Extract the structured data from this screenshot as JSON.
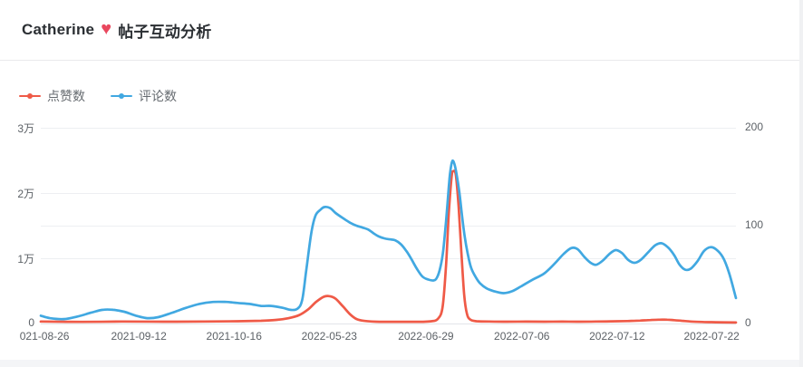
{
  "header": {
    "title_name": "Catherine",
    "heart_icon": "♥",
    "title_text": "帖子互动分析"
  },
  "chart_data": {
    "type": "line",
    "title": "Catherine ♥ 帖子互动分析",
    "grid": true,
    "legend_position": "top-left",
    "left_axis": {
      "max": 30000,
      "ticks": [
        {
          "v": 0,
          "label": "0"
        },
        {
          "v": 10000,
          "label": "1万"
        },
        {
          "v": 20000,
          "label": "2万"
        },
        {
          "v": 30000,
          "label": "3万"
        }
      ]
    },
    "right_axis": {
      "max": 200,
      "ticks": [
        {
          "v": 0,
          "label": "0"
        },
        {
          "v": 100,
          "label": "100"
        },
        {
          "v": 200,
          "label": "200"
        }
      ]
    },
    "x_ticks": [
      {
        "pos": 0.001,
        "label": "2021-08-26"
      },
      {
        "pos": 0.141,
        "label": "2021-09-12"
      },
      {
        "pos": 0.278,
        "label": "2021-10-16"
      },
      {
        "pos": 0.415,
        "label": "2022-05-23"
      },
      {
        "pos": 0.554,
        "label": "2022-06-29"
      },
      {
        "pos": 0.692,
        "label": "2022-07-06"
      },
      {
        "pos": 0.829,
        "label": "2022-07-12"
      },
      {
        "pos": 0.965,
        "label": "2022-07-22"
      }
    ],
    "series": [
      {
        "name": "点赞数",
        "name_en": "likes",
        "axis": "left",
        "color": "#ef5a47",
        "points": [
          [
            0,
            300
          ],
          [
            0.059,
            250
          ],
          [
            0.117,
            300
          ],
          [
            0.176,
            280
          ],
          [
            0.235,
            300
          ],
          [
            0.283,
            350
          ],
          [
            0.317,
            420
          ],
          [
            0.339,
            550
          ],
          [
            0.356,
            800
          ],
          [
            0.372,
            1300
          ],
          [
            0.385,
            2200
          ],
          [
            0.396,
            3300
          ],
          [
            0.407,
            4100
          ],
          [
            0.415,
            4200
          ],
          [
            0.424,
            3800
          ],
          [
            0.434,
            2700
          ],
          [
            0.445,
            1400
          ],
          [
            0.454,
            700
          ],
          [
            0.465,
            400
          ],
          [
            0.482,
            280
          ],
          [
            0.505,
            260
          ],
          [
            0.528,
            260
          ],
          [
            0.548,
            270
          ],
          [
            0.562,
            350
          ],
          [
            0.571,
            700
          ],
          [
            0.578,
            2500
          ],
          [
            0.583,
            9000
          ],
          [
            0.587,
            17000
          ],
          [
            0.591,
            22500
          ],
          [
            0.593,
            23300
          ],
          [
            0.597,
            22800
          ],
          [
            0.601,
            18000
          ],
          [
            0.605,
            11000
          ],
          [
            0.609,
            4500
          ],
          [
            0.613,
            1500
          ],
          [
            0.618,
            600
          ],
          [
            0.627,
            350
          ],
          [
            0.645,
            300
          ],
          [
            0.671,
            280
          ],
          [
            0.698,
            290
          ],
          [
            0.724,
            280
          ],
          [
            0.75,
            290
          ],
          [
            0.776,
            280
          ],
          [
            0.799,
            300
          ],
          [
            0.821,
            330
          ],
          [
            0.844,
            380
          ],
          [
            0.862,
            450
          ],
          [
            0.877,
            530
          ],
          [
            0.89,
            580
          ],
          [
            0.901,
            590
          ],
          [
            0.911,
            520
          ],
          [
            0.922,
            420
          ],
          [
            0.935,
            300
          ],
          [
            0.952,
            230
          ],
          [
            0.971,
            190
          ],
          [
            1,
            150
          ]
        ]
      },
      {
        "name": "评论数",
        "name_en": "comments",
        "axis": "right",
        "color": "#41a8e1",
        "points": [
          [
            0,
            8
          ],
          [
            0.013,
            5.5
          ],
          [
            0.033,
            4.5
          ],
          [
            0.052,
            7
          ],
          [
            0.072,
            11
          ],
          [
            0.089,
            14
          ],
          [
            0.104,
            14
          ],
          [
            0.12,
            12
          ],
          [
            0.137,
            8
          ],
          [
            0.153,
            5.5
          ],
          [
            0.169,
            6.5
          ],
          [
            0.189,
            11
          ],
          [
            0.209,
            16
          ],
          [
            0.228,
            20
          ],
          [
            0.248,
            22
          ],
          [
            0.267,
            22
          ],
          [
            0.283,
            21
          ],
          [
            0.3,
            20
          ],
          [
            0.317,
            18
          ],
          [
            0.332,
            18
          ],
          [
            0.348,
            16
          ],
          [
            0.359,
            14
          ],
          [
            0.369,
            15
          ],
          [
            0.376,
            24
          ],
          [
            0.382,
            55
          ],
          [
            0.389,
            92
          ],
          [
            0.395,
            110
          ],
          [
            0.402,
            116
          ],
          [
            0.408,
            119
          ],
          [
            0.416,
            118
          ],
          [
            0.424,
            113
          ],
          [
            0.434,
            108
          ],
          [
            0.445,
            103
          ],
          [
            0.454,
            100
          ],
          [
            0.463,
            98
          ],
          [
            0.471,
            96
          ],
          [
            0.479,
            92
          ],
          [
            0.486,
            89
          ],
          [
            0.494,
            87
          ],
          [
            0.502,
            86
          ],
          [
            0.51,
            85
          ],
          [
            0.518,
            81
          ],
          [
            0.526,
            74
          ],
          [
            0.533,
            66
          ],
          [
            0.541,
            56
          ],
          [
            0.549,
            48
          ],
          [
            0.557,
            45
          ],
          [
            0.565,
            44
          ],
          [
            0.57,
            47
          ],
          [
            0.575,
            58
          ],
          [
            0.579,
            75
          ],
          [
            0.583,
            105
          ],
          [
            0.587,
            140
          ],
          [
            0.589,
            155
          ],
          [
            0.592,
            166
          ],
          [
            0.595,
            163
          ],
          [
            0.598,
            153
          ],
          [
            0.602,
            135
          ],
          [
            0.606,
            110
          ],
          [
            0.61,
            88
          ],
          [
            0.614,
            72
          ],
          [
            0.619,
            57
          ],
          [
            0.626,
            47
          ],
          [
            0.632,
            41
          ],
          [
            0.641,
            36
          ],
          [
            0.652,
            33
          ],
          [
            0.666,
            31
          ],
          [
            0.678,
            33
          ],
          [
            0.691,
            38
          ],
          [
            0.708,
            45
          ],
          [
            0.724,
            51
          ],
          [
            0.739,
            61
          ],
          [
            0.752,
            71
          ],
          [
            0.763,
            77
          ],
          [
            0.772,
            76
          ],
          [
            0.782,
            68
          ],
          [
            0.791,
            62
          ],
          [
            0.799,
            60
          ],
          [
            0.808,
            64
          ],
          [
            0.818,
            71
          ],
          [
            0.827,
            75
          ],
          [
            0.836,
            72
          ],
          [
            0.845,
            65
          ],
          [
            0.854,
            62
          ],
          [
            0.863,
            65
          ],
          [
            0.874,
            73
          ],
          [
            0.884,
            80
          ],
          [
            0.893,
            82
          ],
          [
            0.902,
            78
          ],
          [
            0.911,
            70
          ],
          [
            0.919,
            60
          ],
          [
            0.927,
            55
          ],
          [
            0.935,
            56
          ],
          [
            0.945,
            64
          ],
          [
            0.954,
            74
          ],
          [
            0.963,
            78
          ],
          [
            0.971,
            76
          ],
          [
            0.981,
            68
          ],
          [
            0.99,
            52
          ],
          [
            1,
            26
          ]
        ]
      }
    ]
  },
  "colors": {
    "grid_line": "#edeff2",
    "axis_line": "#e2e5e9",
    "axis_label": "#5c6166",
    "page_strip": "#f4f5f7"
  }
}
